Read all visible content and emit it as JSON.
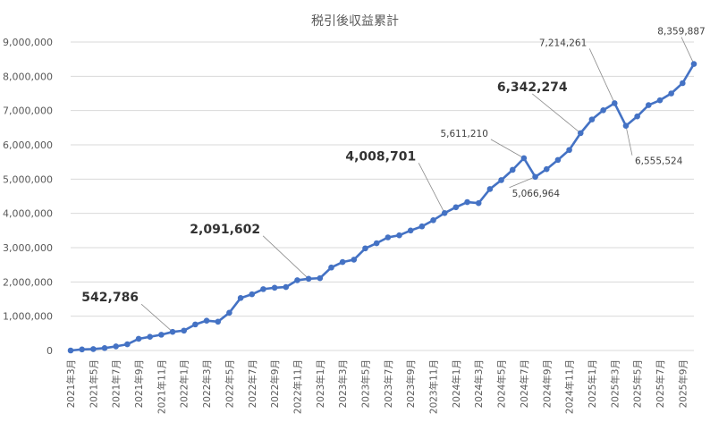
{
  "chart_data": {
    "type": "line",
    "title": "税引後収益累計",
    "xlabel": "",
    "ylabel": "",
    "ylim": [
      0,
      9000000
    ],
    "yticks": [
      0,
      1000000,
      2000000,
      3000000,
      4000000,
      5000000,
      6000000,
      7000000,
      8000000,
      9000000
    ],
    "ytick_labels": [
      "0",
      "1,000,000",
      "2,000,000",
      "3,000,000",
      "4,000,000",
      "5,000,000",
      "6,000,000",
      "7,000,000",
      "8,000,000",
      "9,000,000"
    ],
    "grid": true,
    "legend": "none",
    "line_color": "#4472C4",
    "categories": [
      "2021年3月",
      "2021年4月",
      "2021年5月",
      "2021年6月",
      "2021年7月",
      "2021年8月",
      "2021年9月",
      "2021年10月",
      "2021年11月",
      "2021年12月",
      "2022年1月",
      "2022年2月",
      "2022年3月",
      "2022年4月",
      "2022年5月",
      "2022年6月",
      "2022年7月",
      "2022年8月",
      "2022年9月",
      "2022年10月",
      "2022年11月",
      "2022年12月",
      "2023年1月",
      "2023年2月",
      "2023年3月",
      "2023年4月",
      "2023年5月",
      "2023年6月",
      "2023年7月",
      "2023年8月",
      "2023年9月",
      "2023年10月",
      "2023年11月",
      "2023年12月",
      "2024年1月",
      "2024年2月",
      "2024年3月",
      "2024年4月",
      "2024年5月",
      "2024年6月",
      "2024年7月",
      "2024年8月",
      "2024年9月",
      "2024年10月",
      "2024年11月",
      "2024年12月",
      "2025年1月",
      "2025年2月",
      "2025年3月",
      "2025年4月",
      "2025年5月",
      "2025年6月",
      "2025年7月",
      "2025年8月",
      "2025年9月",
      "2025年10月"
    ],
    "x_tick_labels": [
      "2021年3月",
      "2021年5月",
      "2021年7月",
      "2021年9月",
      "2021年11月",
      "2022年1月",
      "2022年3月",
      "2022年5月",
      "2022年7月",
      "2022年9月",
      "2022年11月",
      "2023年1月",
      "2023年3月",
      "2023年5月",
      "2023年7月",
      "2023年9月",
      "2023年11月",
      "2024年1月",
      "2024年3月",
      "2024年5月",
      "2024年7月",
      "2024年9月",
      "2024年11月",
      "2025年1月",
      "2025年3月",
      "2025年5月",
      "2025年7月",
      "2025年9月"
    ],
    "values": [
      0,
      30000,
      40000,
      70000,
      120000,
      180000,
      340000,
      400000,
      460000,
      542786,
      580000,
      760000,
      870000,
      840000,
      1100000,
      1530000,
      1640000,
      1790000,
      1830000,
      1850000,
      2050000,
      2091602,
      2110000,
      2420000,
      2580000,
      2650000,
      2980000,
      3130000,
      3300000,
      3360000,
      3500000,
      3620000,
      3800000,
      4008701,
      4180000,
      4330000,
      4300000,
      4710000,
      4970000,
      5270000,
      5611210,
      5066964,
      5290000,
      5560000,
      5850000,
      6342274,
      6740000,
      7010000,
      7214261,
      6555524,
      6830000,
      7160000,
      7300000,
      7500000,
      7800000,
      8359887
    ],
    "annotations": [
      {
        "index": 9,
        "label": "542,786",
        "style": "big"
      },
      {
        "index": 21,
        "label": "2,091,602",
        "style": "big"
      },
      {
        "index": 33,
        "label": "4,008,701",
        "style": "big"
      },
      {
        "index": 40,
        "label": "5,611,210",
        "style": "small"
      },
      {
        "index": 41,
        "label": "5,066,964",
        "style": "small"
      },
      {
        "index": 45,
        "label": "6,342,274",
        "style": "big"
      },
      {
        "index": 48,
        "label": "7,214,261",
        "style": "small"
      },
      {
        "index": 49,
        "label": "6,555,524",
        "style": "small"
      },
      {
        "index": 55,
        "label": "8,359,887",
        "style": "small"
      }
    ]
  }
}
